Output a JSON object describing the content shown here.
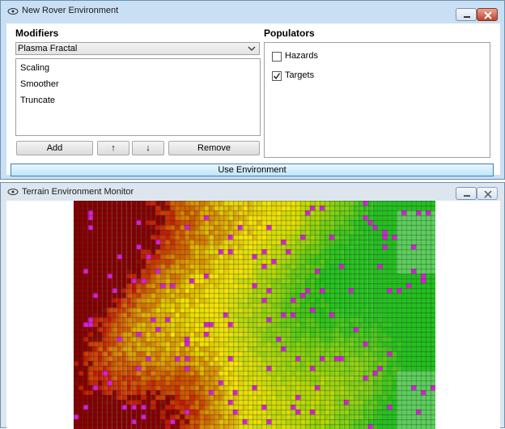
{
  "rover_window": {
    "title": "New Rover Environment",
    "modifiers": {
      "heading": "Modifiers",
      "selected": "Plasma Fractal",
      "items": [
        "Scaling",
        "Smoother",
        "Truncate"
      ],
      "buttons": {
        "add": "Add",
        "up": "↑",
        "down": "↓",
        "remove": "Remove"
      }
    },
    "populators": {
      "heading": "Populators",
      "items": [
        {
          "label": "Hazards",
          "checked": false
        },
        {
          "label": "Targets",
          "checked": true
        }
      ]
    },
    "use_button": "Use Environment"
  },
  "monitor_window": {
    "title": "Terrain Environment Monitor",
    "grid": {
      "cols": 75,
      "rows": 47
    },
    "colors": {
      "high": "#c00000",
      "mid": "#e8e000",
      "low": "#22c21d",
      "marker": "#d820d8",
      "gridline": "#1a1a1a"
    }
  }
}
